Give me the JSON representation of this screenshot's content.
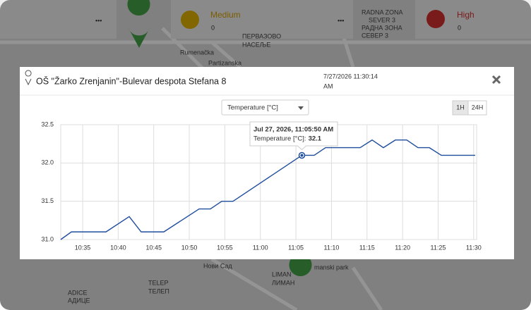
{
  "cards": [
    {
      "label": "Medium",
      "count": "0"
    },
    {
      "label": "High",
      "count": "0"
    }
  ],
  "map_labels": [
    "Rumenačka",
    "Partizanska",
    "ПЕРВАЗОВО",
    "НАСЕЉЕ",
    "RADNA ZONA",
    "SEVER 3",
    "РАДНА ЗОНА",
    "СЕВЕР 3",
    "Нови Сад",
    "LIMAN",
    "ЛИМАН",
    "manski park",
    "TELEP",
    "ТЕЛЕП",
    "ADICE",
    "АДИЦЕ"
  ],
  "popup": {
    "title": "OŠ \"Žarko Zrenjanin\"-Bulevar despota Stefana 8",
    "timestamp": [
      "7/27/2026 11:30:14",
      "AM"
    ],
    "selector": "Temperature [°C]",
    "ranges": [
      "1H",
      "24H"
    ],
    "active_range": "1H"
  },
  "chart_data": {
    "type": "line",
    "x": [
      "10:31:55",
      "10:33:25",
      "10:38:17",
      "10:41:33",
      "10:43:14",
      "10:46:25",
      "10:51:23",
      "10:52:58",
      "10:54:34",
      "10:56:09",
      "11:05:50",
      "11:07:34",
      "11:09:10",
      "11:14:02",
      "11:15:43",
      "11:17:18",
      "11:18:59",
      "11:20:35",
      "11:22:10",
      "11:23:46",
      "11:25:27",
      "11:30:13"
    ],
    "series": [
      {
        "name": "Temperature [°C]",
        "color": "#1f4e9c",
        "values": [
          31.0,
          31.1,
          31.1,
          31.3,
          31.1,
          31.1,
          31.4,
          31.4,
          31.5,
          31.5,
          32.1,
          32.1,
          32.2,
          32.2,
          32.3,
          32.2,
          32.3,
          32.3,
          32.2,
          32.2,
          32.1,
          32.1
        ]
      }
    ],
    "xlim": [
      "10:31:55",
      "11:30:25"
    ],
    "xticks": [
      "10:35",
      "10:40",
      "10:45",
      "10:50",
      "10:55",
      "11:00",
      "11:05",
      "11:10",
      "11:15",
      "11:20",
      "11:25",
      "11:30"
    ],
    "ylim": [
      31.0,
      32.5
    ],
    "yticks": [
      {
        "value": 31.0,
        "label": "31.0"
      },
      31.5,
      {
        "value": 32.0,
        "label": "32.0"
      },
      32.5
    ],
    "grid": true,
    "tooltip": {
      "point": 10,
      "datetime": "Jul 27, 2026, 11:05:50 AM",
      "label": "Temperature [°C]:"
    }
  }
}
